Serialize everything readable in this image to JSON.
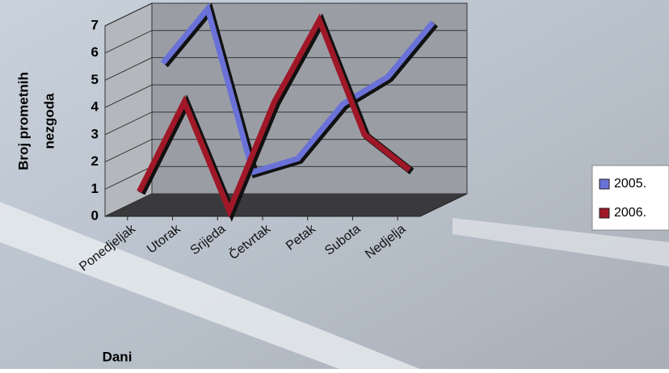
{
  "chart_data": {
    "type": "line3d",
    "y_label_lines": [
      "Broj prometnih",
      "nezgoda"
    ],
    "x_label": "Dani",
    "categories": [
      "Ponedjeljak",
      "Utorak",
      "Srijeda",
      "Četvrtak",
      "Petak",
      "Subota",
      "Nedjelja"
    ],
    "series": [
      {
        "name": "2005.",
        "color": "#6a72d8",
        "values": [
          5,
          7,
          1,
          1.5,
          3.5,
          4.5,
          6.5
        ]
      },
      {
        "name": "2006.",
        "color": "#a01828",
        "values": [
          0.7,
          4,
          0,
          4,
          7,
          2.8,
          1.5
        ]
      }
    ],
    "ylim": [
      0,
      7
    ],
    "yticks": [
      0,
      1,
      2,
      3,
      4,
      5,
      6,
      7
    ],
    "grid": true,
    "legend": "right"
  }
}
